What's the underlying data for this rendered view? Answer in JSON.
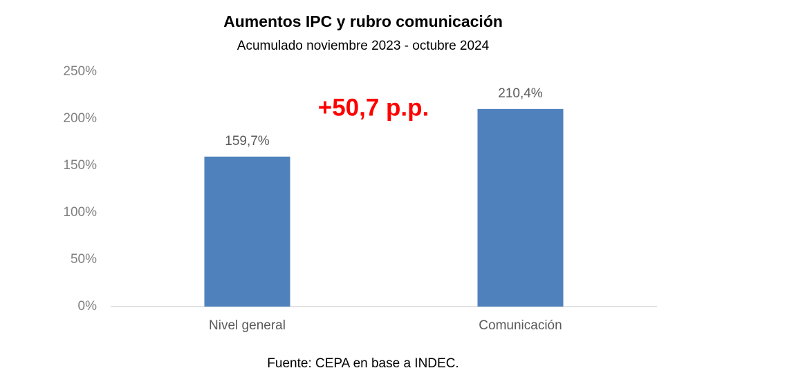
{
  "chart_data": {
    "type": "bar",
    "title": "Aumentos IPC y rubro comunicación",
    "subtitle": "Acumulado noviembre 2023 - octubre 2024",
    "annotation": "+50,7 p.p.",
    "source": "Fuente: CEPA en base a INDEC.",
    "categories": [
      "Nivel general",
      "Comunicación"
    ],
    "values": [
      159.7,
      210.4
    ],
    "value_labels": [
      "159,7%",
      "210,4%"
    ],
    "color": "#4f81bd",
    "ylim": [
      0,
      250
    ],
    "yticks": [
      {
        "value": 0,
        "label": "0%"
      },
      {
        "value": 50,
        "label": "50%"
      },
      {
        "value": 100,
        "label": "100%"
      },
      {
        "value": 150,
        "label": "150%"
      },
      {
        "value": 200,
        "label": "200%"
      },
      {
        "value": 250,
        "label": "250%"
      }
    ],
    "grid": false
  }
}
